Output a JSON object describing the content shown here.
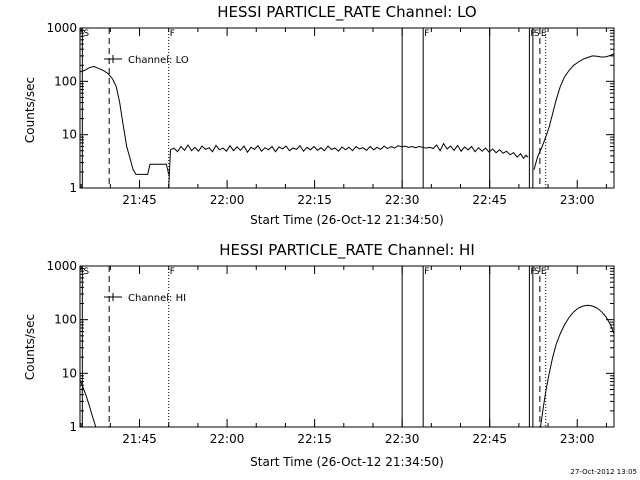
{
  "chart_data": [
    {
      "type": "line",
      "title": "HESSI PARTICLE_RATE Channel: LO",
      "xlabel": "Start Time (26-Oct-12 21:34:50)",
      "ylabel": "Counts/sec",
      "xlim_min": [
        0,
        91.5
      ],
      "ylim": [
        1,
        1000
      ],
      "yscale": "log",
      "xticks": [
        {
          "min": 10.2,
          "label": "21:45"
        },
        {
          "min": 25.2,
          "label": "22:00"
        },
        {
          "min": 40.2,
          "label": "22:15"
        },
        {
          "min": 55.2,
          "label": "22:30"
        },
        {
          "min": 70.2,
          "label": "22:45"
        },
        {
          "min": 85.2,
          "label": "23:00"
        }
      ],
      "yticks": [
        {
          "value": 1,
          "label": "1"
        },
        {
          "value": 10,
          "label": "10"
        },
        {
          "value": 100,
          "label": "100"
        },
        {
          "value": 1000,
          "label": "1000"
        }
      ],
      "legend": "Channel: LO",
      "series": [
        {
          "name": "Channel: LO",
          "segments": [
            [
              [
                0,
                150
              ],
              [
                0.8,
                160
              ],
              [
                1.6,
                180
              ],
              [
                2.4,
                190
              ],
              [
                3.2,
                175
              ],
              [
                4.0,
                160
              ],
              [
                4.8,
                140
              ],
              [
                5.6,
                110
              ],
              [
                6.2,
                80
              ],
              [
                6.8,
                40
              ],
              [
                7.4,
                15
              ],
              [
                8.0,
                6
              ],
              [
                8.6,
                3.5
              ],
              [
                9.1,
                2.2
              ],
              [
                9.6,
                1.8
              ],
              [
                10.2,
                1.8
              ],
              [
                11.0,
                1.8
              ],
              [
                11.6,
                1.8
              ],
              [
                12.0,
                2.8
              ],
              [
                13.0,
                2.8
              ],
              [
                14.0,
                2.8
              ],
              [
                14.8,
                2.8
              ],
              [
                15.2,
                1.8
              ]
            ],
            [
              [
                15.2,
                1.0
              ],
              [
                15.5,
                5.2
              ],
              [
                16.1,
                5.6
              ],
              [
                16.7,
                4.8
              ],
              [
                17.3,
                6.0
              ],
              [
                17.9,
                5.1
              ],
              [
                18.5,
                6.4
              ],
              [
                19.1,
                5.0
              ],
              [
                19.7,
                5.8
              ],
              [
                20.3,
                4.9
              ],
              [
                20.9,
                6.1
              ],
              [
                21.5,
                5.3
              ],
              [
                22.1,
                5.7
              ],
              [
                22.7,
                4.8
              ],
              [
                23.3,
                6.3
              ],
              [
                23.9,
                5.2
              ],
              [
                24.5,
                5.6
              ],
              [
                25.1,
                4.9
              ],
              [
                25.7,
                6.2
              ],
              [
                26.3,
                5.0
              ],
              [
                26.9,
                5.9
              ],
              [
                27.5,
                5.1
              ],
              [
                28.1,
                6.1
              ],
              [
                28.7,
                4.7
              ],
              [
                29.3,
                5.8
              ],
              [
                29.9,
                5.3
              ],
              [
                30.5,
                6.2
              ],
              [
                31.1,
                4.9
              ],
              [
                31.7,
                5.7
              ],
              [
                32.3,
                5.2
              ],
              [
                32.9,
                6.0
              ],
              [
                33.5,
                4.8
              ],
              [
                34.1,
                5.9
              ],
              [
                34.7,
                5.4
              ],
              [
                35.3,
                6.1
              ],
              [
                35.9,
                5.0
              ],
              [
                36.5,
                5.6
              ],
              [
                37.1,
                5.3
              ],
              [
                37.7,
                6.2
              ],
              [
                38.3,
                4.9
              ],
              [
                38.9,
                5.8
              ],
              [
                39.5,
                5.2
              ],
              [
                40.1,
                6.0
              ],
              [
                40.7,
                5.1
              ],
              [
                41.3,
                5.7
              ],
              [
                41.9,
                5.0
              ],
              [
                42.5,
                6.1
              ],
              [
                43.1,
                5.3
              ],
              [
                43.7,
                5.6
              ],
              [
                44.3,
                4.9
              ],
              [
                44.9,
                5.9
              ],
              [
                45.5,
                5.2
              ],
              [
                46.1,
                5.8
              ],
              [
                46.7,
                5.0
              ],
              [
                47.3,
                6.0
              ],
              [
                47.9,
                5.4
              ],
              [
                48.5,
                5.7
              ],
              [
                49.1,
                5.1
              ],
              [
                49.7,
                6.0
              ],
              [
                50.3,
                5.2
              ],
              [
                50.9,
                5.8
              ],
              [
                51.5,
                5.3
              ],
              [
                52.1,
                6.1
              ],
              [
                52.7,
                5.5
              ],
              [
                53.3,
                6.0
              ],
              [
                53.9,
                5.6
              ],
              [
                54.5,
                6.2
              ],
              [
                55.1,
                5.9
              ],
              [
                55.7,
                6.1
              ],
              [
                56.3,
                5.8
              ],
              [
                56.9,
                6.0
              ],
              [
                57.5,
                5.7
              ],
              [
                58.1,
                6.0
              ],
              [
                58.7,
                5.8
              ],
              [
                59.3,
                5.6
              ],
              [
                59.9,
                5.8
              ],
              [
                60.5,
                5.5
              ],
              [
                61.1,
                6.4
              ],
              [
                61.7,
                5.0
              ],
              [
                62.3,
                6.8
              ],
              [
                62.9,
                5.4
              ],
              [
                63.5,
                6.1
              ],
              [
                64.1,
                5.1
              ],
              [
                64.7,
                6.3
              ],
              [
                65.3,
                4.9
              ],
              [
                65.9,
                5.9
              ],
              [
                66.5,
                5.2
              ],
              [
                67.1,
                6.0
              ],
              [
                67.7,
                4.8
              ],
              [
                68.3,
                5.7
              ],
              [
                68.9,
                4.9
              ],
              [
                69.5,
                5.6
              ],
              [
                70.1,
                4.7
              ],
              [
                70.7,
                5.4
              ],
              [
                71.3,
                4.6
              ],
              [
                71.9,
                5.2
              ],
              [
                72.5,
                4.5
              ],
              [
                73.1,
                4.9
              ],
              [
                73.7,
                4.2
              ],
              [
                74.3,
                4.6
              ],
              [
                74.9,
                3.8
              ],
              [
                75.5,
                4.4
              ],
              [
                76.0,
                3.6
              ],
              [
                76.4,
                4.1
              ],
              [
                76.8,
                3.8
              ]
            ],
            [
              [
                77.8,
                2.2
              ],
              [
                78.4,
                3.8
              ],
              [
                78.8,
                4.8
              ],
              [
                79.2,
                6.0
              ],
              [
                79.8,
                9.0
              ],
              [
                80.4,
                14
              ],
              [
                81.0,
                25
              ],
              [
                81.6,
                45
              ],
              [
                82.3,
                80
              ],
              [
                83.0,
                120
              ],
              [
                83.8,
                160
              ],
              [
                84.6,
                200
              ],
              [
                85.4,
                230
              ],
              [
                86.2,
                260
              ],
              [
                87.0,
                280
              ],
              [
                87.8,
                300
              ],
              [
                88.6,
                295
              ],
              [
                89.4,
                285
              ],
              [
                90.2,
                290
              ],
              [
                91.0,
                310
              ],
              [
                91.5,
                330
              ]
            ]
          ]
        }
      ],
      "markers": [
        {
          "min": 0.4,
          "style": "solid",
          "label": "S"
        },
        {
          "min": 5.0,
          "style": "dashed",
          "label": ""
        },
        {
          "min": 15.2,
          "style": "dotted",
          "label": "F"
        },
        {
          "min": 55.2,
          "style": "solid",
          "label": ""
        },
        {
          "min": 58.8,
          "style": "solid",
          "label": "F"
        },
        {
          "min": 70.2,
          "style": "solid",
          "label": ""
        },
        {
          "min": 77.0,
          "style": "solid",
          "label": "F"
        },
        {
          "min": 77.6,
          "style": "solid",
          "label": "S"
        },
        {
          "min": 78.8,
          "style": "dashed",
          "label": "E"
        },
        {
          "min": 79.8,
          "style": "dotted",
          "label": ""
        },
        {
          "min": 91.5,
          "style": "dashdot",
          "label": ""
        }
      ]
    },
    {
      "type": "line",
      "title": "HESSI PARTICLE_RATE Channel: HI",
      "xlabel": "Start Time (26-Oct-12 21:34:50)",
      "ylabel": "Counts/sec",
      "xlim_min": [
        0,
        91.5
      ],
      "ylim": [
        1,
        1000
      ],
      "yscale": "log",
      "xticks": [
        {
          "min": 10.2,
          "label": "21:45"
        },
        {
          "min": 25.2,
          "label": "22:00"
        },
        {
          "min": 40.2,
          "label": "22:15"
        },
        {
          "min": 55.2,
          "label": "22:30"
        },
        {
          "min": 70.2,
          "label": "22:45"
        },
        {
          "min": 85.2,
          "label": "23:00"
        }
      ],
      "yticks": [
        {
          "value": 1,
          "label": "1"
        },
        {
          "value": 10,
          "label": "10"
        },
        {
          "value": 100,
          "label": "100"
        },
        {
          "value": 1000,
          "label": "1000"
        }
      ],
      "legend": "Channel: HI",
      "series": [
        {
          "name": "Channel: HI",
          "segments": [
            [
              [
                0,
                7.5
              ],
              [
                0.5,
                5.5
              ],
              [
                1.0,
                4.0
              ],
              [
                1.6,
                2.5
              ],
              [
                2.2,
                1.5
              ],
              [
                2.7,
                1.0
              ]
            ],
            [
              [
                78.9,
                1.0
              ],
              [
                79.3,
                2.0
              ],
              [
                79.8,
                4.5
              ],
              [
                80.4,
                10
              ],
              [
                81.0,
                20
              ],
              [
                81.6,
                35
              ],
              [
                82.3,
                55
              ],
              [
                83.0,
                80
              ],
              [
                83.8,
                110
              ],
              [
                84.6,
                140
              ],
              [
                85.4,
                165
              ],
              [
                86.2,
                180
              ],
              [
                87.0,
                185
              ],
              [
                87.8,
                180
              ],
              [
                88.6,
                165
              ],
              [
                89.4,
                140
              ],
              [
                90.2,
                110
              ],
              [
                90.9,
                80
              ],
              [
                91.5,
                55
              ]
            ]
          ]
        }
      ],
      "markers": [
        {
          "min": 0.4,
          "style": "solid",
          "label": "S"
        },
        {
          "min": 5.0,
          "style": "dashed",
          "label": ""
        },
        {
          "min": 15.2,
          "style": "dotted",
          "label": "F"
        },
        {
          "min": 55.2,
          "style": "solid",
          "label": ""
        },
        {
          "min": 58.8,
          "style": "solid",
          "label": "F"
        },
        {
          "min": 70.2,
          "style": "solid",
          "label": ""
        },
        {
          "min": 77.0,
          "style": "solid",
          "label": "F"
        },
        {
          "min": 77.6,
          "style": "solid",
          "label": "S"
        },
        {
          "min": 78.8,
          "style": "dashed",
          "label": "E"
        },
        {
          "min": 79.8,
          "style": "dotted",
          "label": ""
        },
        {
          "min": 91.5,
          "style": "dashdot",
          "label": ""
        }
      ]
    }
  ],
  "footer": {
    "timestamp": "27-Oct-2012 13:05"
  }
}
